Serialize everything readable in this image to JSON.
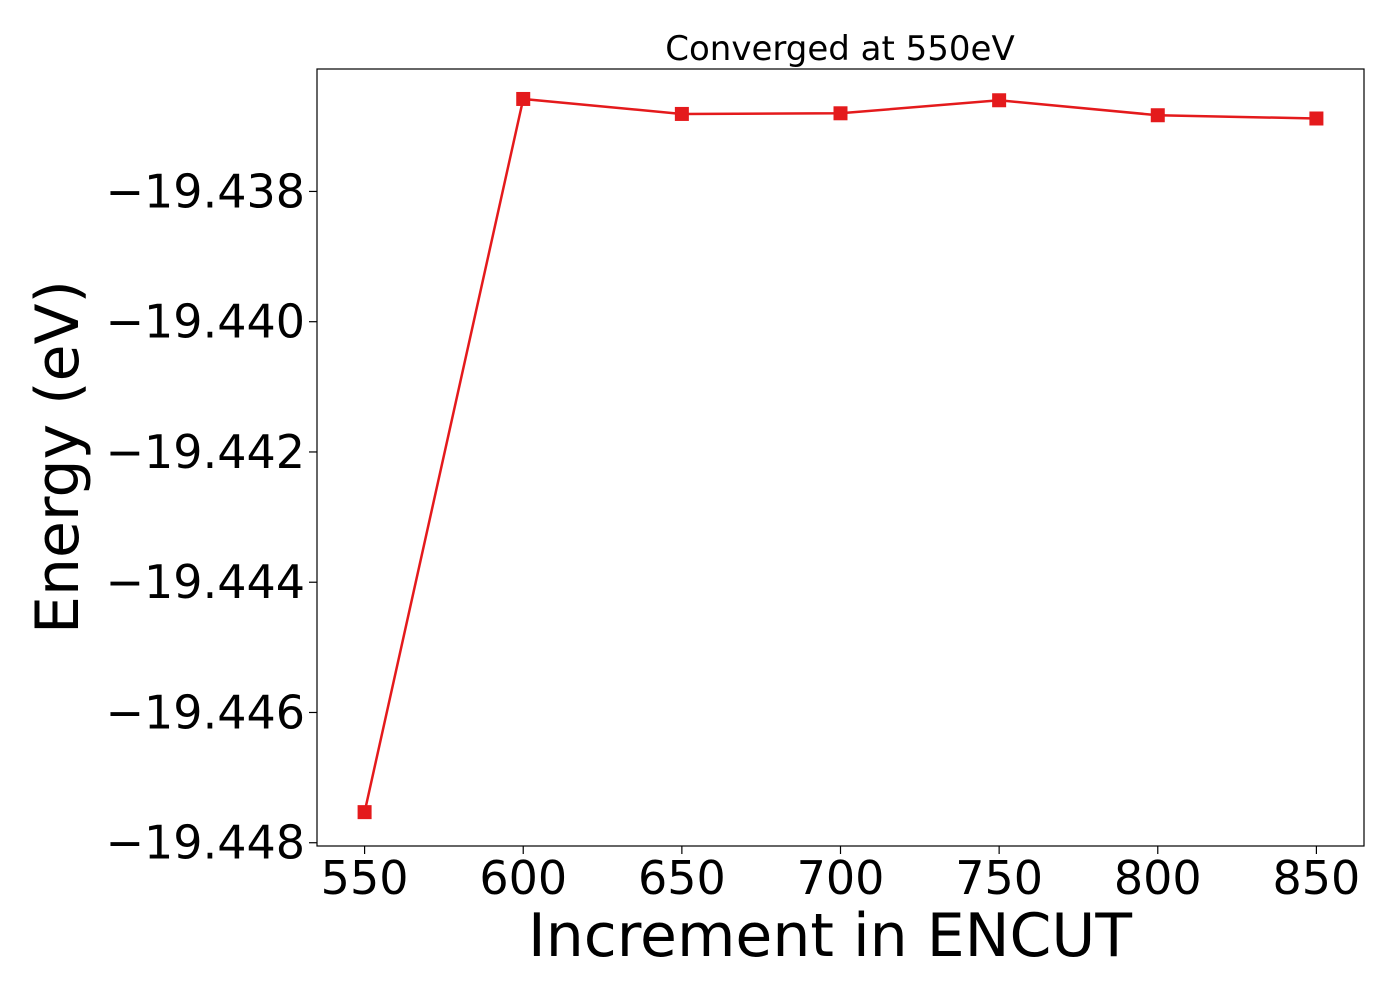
{
  "chart_data": {
    "type": "line",
    "title": "Converged at 550eV",
    "xlabel": "Increment in ENCUT",
    "ylabel": "Energy (eV)",
    "x": [
      550,
      600,
      650,
      700,
      750,
      800,
      850
    ],
    "series": [
      {
        "values": [
          -19.44753,
          -19.43658,
          -19.43681,
          -19.4368,
          -19.4366,
          -19.43683,
          -19.43688
        ],
        "color": "#e41a1c",
        "marker": "square"
      }
    ],
    "xticks": [
      550,
      600,
      650,
      700,
      750,
      800,
      850
    ],
    "xtick_labels": [
      "550",
      "600",
      "650",
      "700",
      "750",
      "800",
      "850"
    ],
    "yticks": [
      -19.438,
      -19.44,
      -19.442,
      -19.444,
      -19.446,
      -19.448
    ],
    "ytick_labels": [
      "−19.438",
      "−19.440",
      "−19.442",
      "−19.444",
      "−19.446",
      "−19.448"
    ],
    "xlim": [
      535,
      865
    ],
    "ylim": [
      -19.44805,
      -19.43612
    ],
    "grid": false,
    "legend": "none"
  }
}
